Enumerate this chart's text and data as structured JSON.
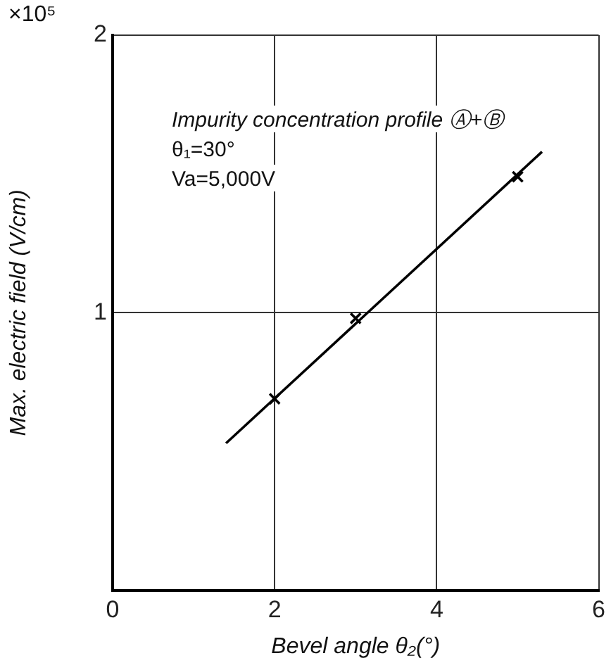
{
  "chart_data": {
    "type": "scatter",
    "xlabel": "Bevel angle θ₂(°)",
    "ylabel": "Max. electric field (V/cm)",
    "annotations": [
      "×10⁵",
      "Impurity concentration profile Ⓐ+Ⓑ",
      "θ₁=30°",
      "Va=5,000V"
    ],
    "series": [
      {
        "type": "line",
        "color": "#000000",
        "x": [
          1.4,
          5.3
        ],
        "values": [
          0.53,
          1.58
        ],
        "marker": "none"
      },
      {
        "type": "scatter",
        "color": "#000000",
        "x": [
          2,
          3,
          5
        ],
        "values": [
          0.69,
          0.98,
          1.49
        ],
        "marker": "cross"
      }
    ],
    "xlim": [
      0,
      6
    ],
    "xticks": [
      0,
      2,
      4,
      6
    ],
    "ylim": [
      0,
      2
    ],
    "yticks": [
      {
        "value": 0,
        "label": null
      },
      1,
      2
    ],
    "grid": true,
    "legend": false
  }
}
